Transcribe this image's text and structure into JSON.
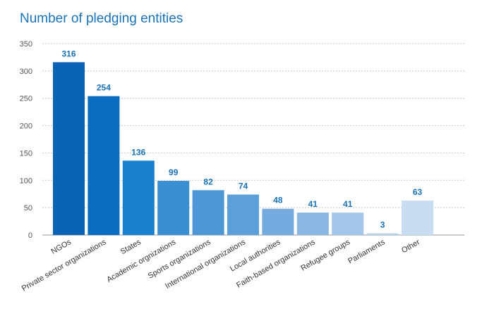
{
  "chart_data": {
    "type": "bar",
    "title": "Number of pledging entities",
    "xlabel": "",
    "ylabel": "",
    "ylim": [
      0,
      350
    ],
    "yticks": [
      0,
      50,
      100,
      150,
      200,
      250,
      300,
      350
    ],
    "grid": true,
    "categories": [
      "NGOs",
      "Private sector organizations",
      "States",
      "Academic orgnizations",
      "Sports organizations",
      "International organizations",
      "Local authorities",
      "Faith-based organizations",
      "Refugee groups",
      "Parliaments",
      "Other"
    ],
    "values": [
      316,
      254,
      136,
      99,
      82,
      74,
      48,
      41,
      41,
      3,
      63
    ],
    "colors": [
      "#0a63b5",
      "#0a6dbf",
      "#1880cc",
      "#3a8fd2",
      "#4d97d6",
      "#5d9fd8",
      "#74abde",
      "#8ab7e2",
      "#a3c6ea",
      "#b6d2ee",
      "#c9ddf2"
    ],
    "label_color": "#1a73b8"
  }
}
